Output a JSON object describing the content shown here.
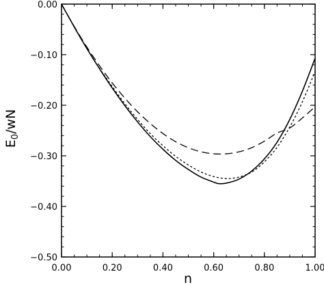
{
  "chart_data": {
    "type": "line",
    "title": "",
    "xlabel": "n",
    "ylabel_main": "E",
    "ylabel_sub": "0",
    "ylabel_rest": "/wN",
    "xlim": [
      0.0,
      1.0
    ],
    "ylim": [
      -0.5,
      0.0
    ],
    "grid": false,
    "legend": "none",
    "x_ticks": [
      {
        "value": 0.0,
        "label": "0.00"
      },
      {
        "value": 0.2,
        "label": "0.20"
      },
      {
        "value": 0.4,
        "label": "0.40"
      },
      {
        "value": 0.6,
        "label": "0.60"
      },
      {
        "value": 0.8,
        "label": "0.80"
      },
      {
        "value": 1.0,
        "label": "1.00"
      }
    ],
    "y_ticks": [
      {
        "value": 0.0,
        "label": "0.00"
      },
      {
        "value": -0.1,
        "label": "−0.10"
      },
      {
        "value": -0.2,
        "label": "−0.20"
      },
      {
        "value": -0.3,
        "label": "−0.30"
      },
      {
        "value": -0.4,
        "label": "−0.40"
      },
      {
        "value": -0.5,
        "label": "−0.50"
      }
    ],
    "series": [
      {
        "style": "solid",
        "color": "#000000",
        "x": [
          0.0,
          0.05,
          0.1,
          0.15,
          0.2,
          0.25,
          0.3,
          0.35,
          0.4,
          0.45,
          0.5,
          0.55,
          0.6,
          0.62,
          0.65,
          0.7,
          0.75,
          0.8,
          0.85,
          0.9,
          0.95,
          1.0
        ],
        "y": [
          0.0,
          -0.045,
          -0.088,
          -0.128,
          -0.166,
          -0.201,
          -0.233,
          -0.262,
          -0.287,
          -0.309,
          -0.327,
          -0.342,
          -0.352,
          -0.355,
          -0.354,
          -0.346,
          -0.33,
          -0.306,
          -0.273,
          -0.228,
          -0.172,
          -0.107
        ]
      },
      {
        "style": "short-dash",
        "color": "#000000",
        "x": [
          0.0,
          0.05,
          0.1,
          0.15,
          0.2,
          0.25,
          0.3,
          0.35,
          0.4,
          0.45,
          0.5,
          0.55,
          0.6,
          0.65,
          0.7,
          0.75,
          0.8,
          0.85,
          0.9,
          0.95,
          1.0
        ],
        "y": [
          0.0,
          -0.045,
          -0.088,
          -0.127,
          -0.163,
          -0.197,
          -0.228,
          -0.256,
          -0.28,
          -0.301,
          -0.318,
          -0.332,
          -0.341,
          -0.345,
          -0.342,
          -0.332,
          -0.312,
          -0.283,
          -0.243,
          -0.193,
          -0.133
        ]
      },
      {
        "style": "long-dash",
        "color": "#000000",
        "x": [
          0.0,
          0.05,
          0.1,
          0.15,
          0.2,
          0.25,
          0.3,
          0.35,
          0.4,
          0.45,
          0.5,
          0.55,
          0.6,
          0.65,
          0.7,
          0.75,
          0.8,
          0.85,
          0.9,
          0.95,
          1.0
        ],
        "y": [
          0.0,
          -0.044,
          -0.085,
          -0.122,
          -0.156,
          -0.186,
          -0.213,
          -0.236,
          -0.256,
          -0.272,
          -0.284,
          -0.292,
          -0.296,
          -0.296,
          -0.292,
          -0.284,
          -0.271,
          -0.255,
          -0.245,
          -0.225,
          -0.203
        ]
      }
    ]
  }
}
